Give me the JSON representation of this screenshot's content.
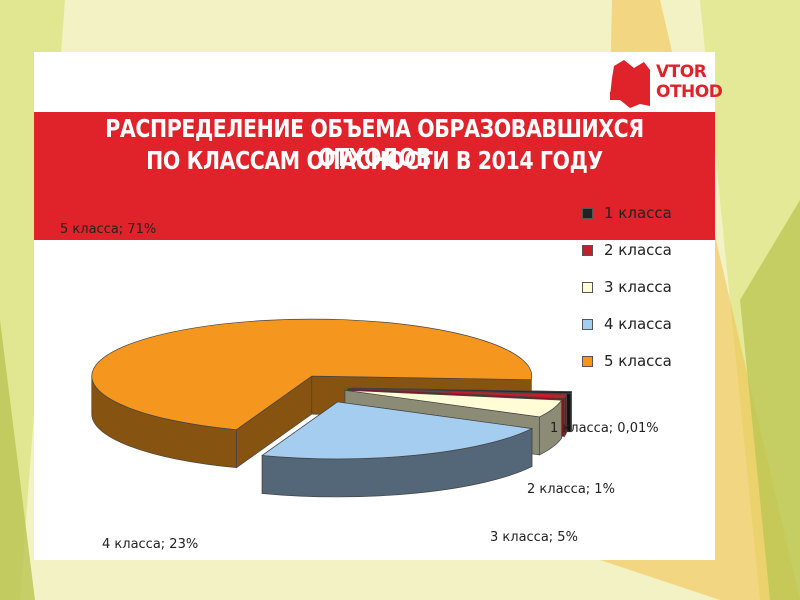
{
  "title": {
    "line1": "РАСПРЕДЕЛЕНИЕ ОБЪЕМА ОБРАЗОВАВШИХСЯ ОТХОДОВ",
    "line2": "ПО КЛАССАМ ОПАСНОСТИ В 2014 ГОДУ"
  },
  "logo": {
    "line1": "VTOR",
    "line2": "OTHOD"
  },
  "colors": {
    "banner": "#e0222a",
    "class1": "#222222",
    "class2": "#c0202a",
    "class3": "#fffcd6",
    "class4": "#a5cdf0",
    "class5": "#f5961e"
  },
  "chart_data": {
    "type": "pie",
    "style": "3d-exploded",
    "categories": [
      "1 класса",
      "2 класса",
      "3 класса",
      "4 класса",
      "5 класса"
    ],
    "values": [
      0.01,
      1,
      5,
      23,
      71
    ],
    "unit": "%",
    "data_labels": [
      "1 класса; 0,01%",
      "2 класса; 1%",
      "3 класса; 5%",
      "4 класса; 23%",
      "5 класса; 71%"
    ],
    "legend_position": "right"
  }
}
